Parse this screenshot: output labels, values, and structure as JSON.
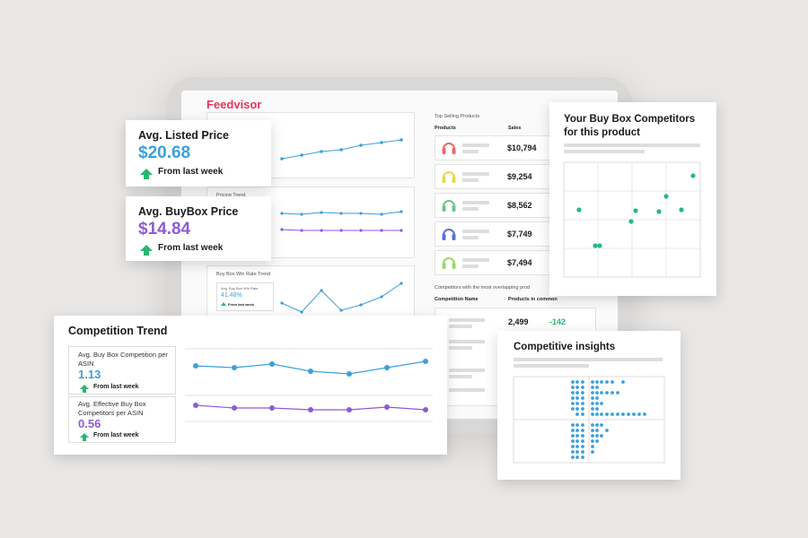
{
  "brand": {
    "logo": "Feedvisor",
    "accent": "#e5345a"
  },
  "colors": {
    "blue": "#3aa0dc",
    "purple": "#8e5ad8",
    "green": "#2bb673",
    "teal": "#24b78a"
  },
  "dashboard": {
    "pricing_trend_label": "Pricing Trend",
    "buybox_trend_label": "Buy Box Win Rate Trend",
    "mini_kpi": {
      "label": "Avg. Buy Box Win Rate",
      "value": "41.48%",
      "foot": "From last week"
    },
    "top_selling": {
      "title": "Top Selling Products",
      "col_products": "Products",
      "col_sales": "Sales",
      "rows": [
        {
          "icon": "headphones-red-icon",
          "color": "#e86a6a",
          "sales": "$10,794"
        },
        {
          "icon": "headphones-yellow-icon",
          "color": "#e9d84a",
          "sales": "$9,254"
        },
        {
          "icon": "headphones-green-icon",
          "color": "#6cc48e",
          "sales": "$8,562"
        },
        {
          "icon": "headphones-blue-icon",
          "color": "#5a6fd8",
          "sales": "$7,749"
        },
        {
          "icon": "headphones-lime-icon",
          "color": "#9ad864",
          "sales": "$7,494"
        }
      ]
    },
    "competitors": {
      "title": "Competitors with the most overlapping prod",
      "col_name": "Competition Name",
      "col_common": "Products in common",
      "row1_count": "2,499",
      "row1_delta": "-142"
    }
  },
  "listed_price": {
    "title": "Avg. Listed Price",
    "value": "$20.68",
    "foot": "From last week"
  },
  "buybox_price": {
    "title": "Avg. BuyBox Price",
    "value": "$14.84",
    "foot": "From last week"
  },
  "competition_trend": {
    "title": "Competition Trend",
    "kpi1": {
      "label": "Avg. Buy Box Competition per ASIN",
      "value": "1.13",
      "foot": "From last week"
    },
    "kpi2": {
      "label": "Avg. Effective Buy Box Competitors per ASIN",
      "value": "0.56",
      "foot": "From last week"
    }
  },
  "buybox_competitors": {
    "title": "Your Buy Box Competitors for this product"
  },
  "competitive_insights": {
    "title": "Competitive insights"
  }
}
